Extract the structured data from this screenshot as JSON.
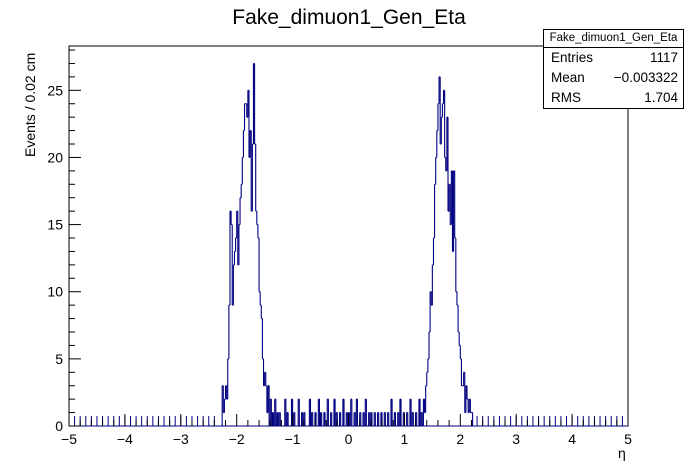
{
  "chart_data": {
    "type": "histogram",
    "title": "Fake_dimuon1_Gen_Eta",
    "xlabel": "η",
    "ylabel": "Events / 0.02 cm",
    "xlim": [
      -5,
      5
    ],
    "ylim": [
      0,
      28.3
    ],
    "xticks": [
      "−5",
      "−4",
      "−3",
      "−2",
      "−1",
      "0",
      "1",
      "2",
      "3",
      "4",
      "5"
    ],
    "yticks": [
      "0",
      "5",
      "10",
      "15",
      "20",
      "25"
    ],
    "bin_width": 0.02,
    "line_color": "#000080",
    "stats": {
      "name": "Fake_dimuon1_Gen_Eta",
      "rows": [
        {
          "label": "Entries",
          "value": "1117"
        },
        {
          "label": "Mean",
          "value": "−0.003322"
        },
        {
          "label": "RMS",
          "value": "1.704"
        }
      ]
    },
    "counts": [
      {
        "x": -2.26,
        "y": 3
      },
      {
        "x": -2.24,
        "y": 1
      },
      {
        "x": -2.22,
        "y": 2
      },
      {
        "x": -2.2,
        "y": 3
      },
      {
        "x": -2.18,
        "y": 2
      },
      {
        "x": -2.16,
        "y": 5
      },
      {
        "x": -2.14,
        "y": 9
      },
      {
        "x": -2.12,
        "y": 16
      },
      {
        "x": -2.1,
        "y": 15
      },
      {
        "x": -2.08,
        "y": 9
      },
      {
        "x": -2.06,
        "y": 12
      },
      {
        "x": -2.04,
        "y": 13
      },
      {
        "x": -2.02,
        "y": 14
      },
      {
        "x": -2.0,
        "y": 16
      },
      {
        "x": -1.98,
        "y": 12
      },
      {
        "x": -1.96,
        "y": 15
      },
      {
        "x": -1.94,
        "y": 17
      },
      {
        "x": -1.92,
        "y": 18
      },
      {
        "x": -1.9,
        "y": 20
      },
      {
        "x": -1.88,
        "y": 22
      },
      {
        "x": -1.86,
        "y": 24
      },
      {
        "x": -1.84,
        "y": 24
      },
      {
        "x": -1.82,
        "y": 23
      },
      {
        "x": -1.8,
        "y": 25
      },
      {
        "x": -1.78,
        "y": 20
      },
      {
        "x": -1.76,
        "y": 22
      },
      {
        "x": -1.74,
        "y": 16
      },
      {
        "x": -1.72,
        "y": 21
      },
      {
        "x": -1.7,
        "y": 27
      },
      {
        "x": -1.68,
        "y": 21
      },
      {
        "x": -1.66,
        "y": 16
      },
      {
        "x": -1.64,
        "y": 15
      },
      {
        "x": -1.62,
        "y": 14
      },
      {
        "x": -1.6,
        "y": 10
      },
      {
        "x": -1.58,
        "y": 9
      },
      {
        "x": -1.56,
        "y": 8
      },
      {
        "x": -1.54,
        "y": 5
      },
      {
        "x": -1.52,
        "y": 3
      },
      {
        "x": -1.5,
        "y": 4
      },
      {
        "x": -1.48,
        "y": 3
      },
      {
        "x": -1.46,
        "y": 1
      },
      {
        "x": -1.44,
        "y": 3
      },
      {
        "x": -1.4,
        "y": 2
      },
      {
        "x": -1.36,
        "y": 1
      },
      {
        "x": -1.32,
        "y": 2
      },
      {
        "x": -1.28,
        "y": 1
      },
      {
        "x": -1.24,
        "y": 1
      },
      {
        "x": -1.14,
        "y": 2
      },
      {
        "x": -1.1,
        "y": 1
      },
      {
        "x": -1.02,
        "y": 2
      },
      {
        "x": -0.98,
        "y": 1
      },
      {
        "x": -0.9,
        "y": 2
      },
      {
        "x": -0.84,
        "y": 1
      },
      {
        "x": -0.8,
        "y": 1
      },
      {
        "x": -0.7,
        "y": 2
      },
      {
        "x": -0.66,
        "y": 1
      },
      {
        "x": -0.6,
        "y": 1
      },
      {
        "x": -0.54,
        "y": 2
      },
      {
        "x": -0.5,
        "y": 1
      },
      {
        "x": -0.44,
        "y": 1
      },
      {
        "x": -0.38,
        "y": 2
      },
      {
        "x": -0.32,
        "y": 1
      },
      {
        "x": -0.26,
        "y": 2
      },
      {
        "x": -0.22,
        "y": 1
      },
      {
        "x": -0.16,
        "y": 1
      },
      {
        "x": -0.1,
        "y": 2
      },
      {
        "x": -0.04,
        "y": 1
      },
      {
        "x": 0.0,
        "y": 1
      },
      {
        "x": 0.04,
        "y": 2
      },
      {
        "x": 0.1,
        "y": 1
      },
      {
        "x": 0.14,
        "y": 2
      },
      {
        "x": 0.2,
        "y": 1
      },
      {
        "x": 0.26,
        "y": 1
      },
      {
        "x": 0.3,
        "y": 2
      },
      {
        "x": 0.36,
        "y": 1
      },
      {
        "x": 0.4,
        "y": 1
      },
      {
        "x": 0.46,
        "y": 1
      },
      {
        "x": 0.52,
        "y": 1
      },
      {
        "x": 0.58,
        "y": 1
      },
      {
        "x": 0.64,
        "y": 1
      },
      {
        "x": 0.7,
        "y": 1
      },
      {
        "x": 0.76,
        "y": 2
      },
      {
        "x": 0.82,
        "y": 1
      },
      {
        "x": 0.88,
        "y": 1
      },
      {
        "x": 0.92,
        "y": 2
      },
      {
        "x": 0.98,
        "y": 1
      },
      {
        "x": 1.04,
        "y": 1
      },
      {
        "x": 1.1,
        "y": 2
      },
      {
        "x": 1.14,
        "y": 1
      },
      {
        "x": 1.2,
        "y": 1
      },
      {
        "x": 1.26,
        "y": 2
      },
      {
        "x": 1.3,
        "y": 1
      },
      {
        "x": 1.34,
        "y": 2
      },
      {
        "x": 1.36,
        "y": 1
      },
      {
        "x": 1.38,
        "y": 3
      },
      {
        "x": 1.4,
        "y": 4
      },
      {
        "x": 1.42,
        "y": 5
      },
      {
        "x": 1.44,
        "y": 7
      },
      {
        "x": 1.46,
        "y": 10
      },
      {
        "x": 1.48,
        "y": 9
      },
      {
        "x": 1.5,
        "y": 12
      },
      {
        "x": 1.52,
        "y": 14
      },
      {
        "x": 1.54,
        "y": 18
      },
      {
        "x": 1.56,
        "y": 20
      },
      {
        "x": 1.58,
        "y": 22
      },
      {
        "x": 1.6,
        "y": 24
      },
      {
        "x": 1.62,
        "y": 26
      },
      {
        "x": 1.64,
        "y": 21
      },
      {
        "x": 1.66,
        "y": 23
      },
      {
        "x": 1.68,
        "y": 24
      },
      {
        "x": 1.7,
        "y": 25
      },
      {
        "x": 1.72,
        "y": 20
      },
      {
        "x": 1.74,
        "y": 19
      },
      {
        "x": 1.76,
        "y": 23
      },
      {
        "x": 1.78,
        "y": 16
      },
      {
        "x": 1.8,
        "y": 18
      },
      {
        "x": 1.82,
        "y": 15
      },
      {
        "x": 1.84,
        "y": 19
      },
      {
        "x": 1.86,
        "y": 13
      },
      {
        "x": 1.88,
        "y": 19
      },
      {
        "x": 1.9,
        "y": 14
      },
      {
        "x": 1.92,
        "y": 10
      },
      {
        "x": 1.94,
        "y": 9
      },
      {
        "x": 1.96,
        "y": 7
      },
      {
        "x": 1.98,
        "y": 6
      },
      {
        "x": 2.0,
        "y": 5
      },
      {
        "x": 2.02,
        "y": 3
      },
      {
        "x": 2.04,
        "y": 3
      },
      {
        "x": 2.06,
        "y": 4
      },
      {
        "x": 2.08,
        "y": 1
      },
      {
        "x": 2.1,
        "y": 3
      },
      {
        "x": 2.12,
        "y": 2
      },
      {
        "x": 2.14,
        "y": 1
      },
      {
        "x": 2.16,
        "y": 2
      },
      {
        "x": 2.18,
        "y": 1
      },
      {
        "x": 2.2,
        "y": 1
      }
    ]
  }
}
